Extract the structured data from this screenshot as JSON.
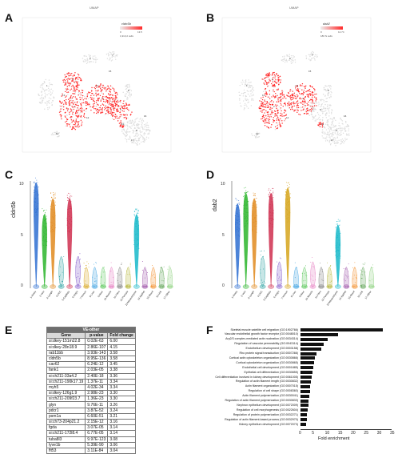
{
  "panels": {
    "A": {
      "label": "A",
      "title": "UMAP",
      "legend_gene": "cldn5b",
      "legend_min": "0",
      "legend_max": "13.5",
      "legend_sub": "1,913,2 cells"
    },
    "B": {
      "label": "B",
      "title": "UMAP",
      "legend_gene": "dab2",
      "legend_min": "0",
      "legend_max": "12.74",
      "legend_sub": "186 N cells"
    },
    "C": {
      "label": "C",
      "ylabel": "cldn5b",
      "yticks": [
        "10",
        "5",
        "0"
      ]
    },
    "D": {
      "label": "D",
      "ylabel": "dab2",
      "yticks": [
        "10",
        "5",
        "0"
      ]
    },
    "E": {
      "label": "E"
    },
    "F": {
      "label": "F"
    }
  },
  "violin_categories": [
    "1-Artery",
    "2-Vein",
    "3-Lymph",
    "4-CEC",
    "5-Capillary",
    "6-Angio",
    "7-Immun",
    "8-Liver",
    "9-Neur",
    "10-Muscle",
    "11-Fibro",
    "12-Pericyte",
    "13-Mesenchyme",
    "14-Epithel",
    "15-Blood",
    "16-Unk",
    "17-Other"
  ],
  "violin_colors": [
    "#2e6fd1",
    "#2bb52b",
    "#e08a1e",
    "#1e9c9c",
    "#cf2f4f",
    "#7a4ec9",
    "#d6a51c",
    "#3aa0e0",
    "#5ac85a",
    "#e57bc0",
    "#7f7f7f",
    "#b2b22e",
    "#18b8c9",
    "#9a4ea6",
    "#f28e2b",
    "#59a14f",
    "#8cd17d"
  ],
  "umap_cluster_ids": [
    "1",
    "2",
    "3",
    "4",
    "5",
    "6",
    "7",
    "8",
    "9",
    "10",
    "11",
    "12",
    "13",
    "14",
    "15",
    "16",
    "17"
  ],
  "ve_table": {
    "caption": "VE-other",
    "headers": [
      "Gene",
      "p-value",
      "Fold change"
    ],
    "rows": [
      [
        "si:dkey-151m22.8",
        "0.02E-63",
        "6.00"
      ],
      [
        "si:dkey-28n18.9",
        "2.86E-107",
        "4.15"
      ],
      [
        "rab11bb",
        "3.93E-143",
        "3.58"
      ],
      [
        "cldn5b",
        "8.95E-136",
        "3.58"
      ],
      [
        "cav62",
        "6.24E-12",
        "3.45"
      ],
      [
        "fank1",
        "2.03E-05",
        "3.38"
      ],
      [
        "si:ch211-33a4.2",
        "2.40E-18",
        "3.36"
      ],
      [
        "si:ch211-190k17.19",
        "1.37E-11",
        "3.34"
      ],
      [
        "myh5",
        "4.02E-34",
        "3.34"
      ],
      [
        "si:dkey-126g1.9",
        "2.98E-23",
        "3.30"
      ],
      [
        "si:ch211-209f23.7",
        "1.36E-23",
        "3.30"
      ],
      [
        "glyn",
        "9.76E-11",
        "3.26"
      ],
      [
        "pdcr1",
        "3.87E-52",
        "3.24"
      ],
      [
        "psm1a",
        "6.60E-51",
        "3.21"
      ],
      [
        "si:ch73-204p21.2",
        "2.15E-12",
        "3.16"
      ],
      [
        "fgda",
        "3.07E-05",
        "3.14"
      ],
      [
        "si:ch211-172l8.4",
        "6.77E-05",
        "3.14"
      ],
      [
        "tuba8l3",
        "9.97E-123",
        "3.08"
      ],
      [
        "lyve1b",
        "5.39E-90",
        "3.06"
      ],
      [
        "flt53",
        "3.11E-84",
        "3.04"
      ]
    ]
  },
  "go_chart": {
    "xlabel": "Fold enrichment",
    "xticks": [
      "0",
      "5",
      "10",
      "15",
      "20",
      "25",
      "30",
      "35"
    ],
    "xmax": 35,
    "terms": [
      {
        "label": "Skeletal muscle satellite cell migration (GO:1902766)",
        "value": 31.5
      },
      {
        "label": "Vascular endothelial growth factor receptor (GO:0048010)",
        "value": 14.5
      },
      {
        "label": "Arp2/3 complex-mediated actin nucleation (GO:0034314)",
        "value": 10.5
      },
      {
        "label": "Regulation of vascular permeability (GO:0043114)",
        "value": 9.0
      },
      {
        "label": "Endothelium development (GO:0003158)",
        "value": 8.0
      },
      {
        "label": "Rho protein signal transduction (GO:0007266)",
        "value": 6.0
      },
      {
        "label": "Cortical actin cytoskeleton organization (GO:0030866)",
        "value": 5.5
      },
      {
        "label": "Cortical cytoskeleton organization (GO:0030865)",
        "value": 5.2
      },
      {
        "label": "Endothelial cell development (GO:0001885)",
        "value": 5.0
      },
      {
        "label": "Epithelial cell differentiation (GO:0030855)",
        "value": 4.6
      },
      {
        "label": "Cell differentiation involved in kidney development (GO:0061005)",
        "value": 4.3
      },
      {
        "label": "Regulation of actin filament length (GO:0030832)",
        "value": 4.0
      },
      {
        "label": "Actin filament organization (GO:0007015)",
        "value": 3.8
      },
      {
        "label": "Regulation of cell shape (GO:0008360)",
        "value": 3.6
      },
      {
        "label": "Actin filament polymerization (GO:0030041)",
        "value": 3.4
      },
      {
        "label": "Regulation of actin filament polymerization (GO:0030833)",
        "value": 3.2
      },
      {
        "label": "Nephron epithelium development (GO:0072009)",
        "value": 3.0
      },
      {
        "label": "Regulation of cell morphogenesis (GO:0022604)",
        "value": 2.8
      },
      {
        "label": "Regulation of protein polymerization (GO:0032271)",
        "value": 2.6
      },
      {
        "label": "Regulation of actin filament-based process (GO:0032970)",
        "value": 2.4
      },
      {
        "label": "Kidney epithelium development (GO:0072073)",
        "value": 2.2
      }
    ]
  },
  "colors": {
    "expression_high": "#ff2a2a",
    "expression_low": "#dddddd",
    "bar": "#111111"
  }
}
